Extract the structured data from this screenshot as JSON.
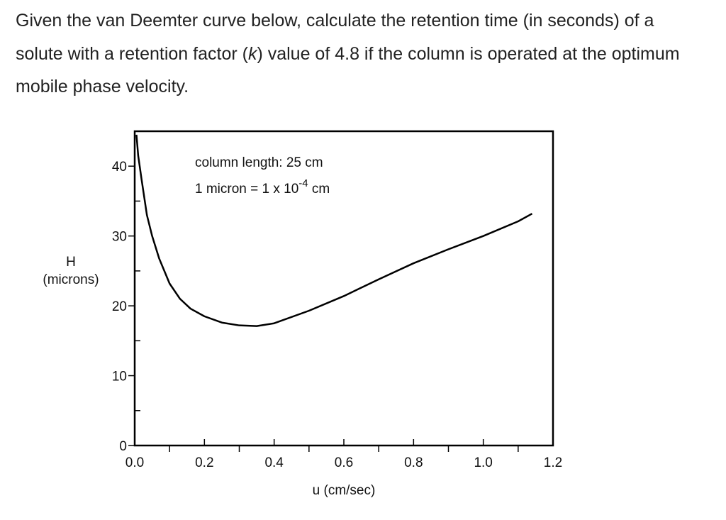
{
  "question": {
    "text_before": "Given the van Deemter curve below, calculate the retention time (in seconds) of a solute with a retention factor (",
    "italic": "k",
    "text_after": ") value of 4.8 if the column is operated at the optimum mobile phase velocity."
  },
  "chart_data": {
    "type": "line",
    "annotations": [
      "column length: 25 cm",
      "1 micron = 1 x 10",
      "-4",
      " cm"
    ],
    "ylabel": [
      "H",
      "(microns)"
    ],
    "xlabel": "u (cm/sec)",
    "x": [
      0.005,
      0.01,
      0.02,
      0.035,
      0.05,
      0.07,
      0.1,
      0.13,
      0.16,
      0.2,
      0.25,
      0.3,
      0.35,
      0.4,
      0.5,
      0.6,
      0.7,
      0.8,
      0.9,
      1.0,
      1.1,
      1.14
    ],
    "series": [
      {
        "name": "H",
        "color": "#000000",
        "values": [
          44.5,
          41.5,
          38,
          33,
          30,
          26.8,
          23.2,
          21,
          19.6,
          18.5,
          17.6,
          17.2,
          17.1,
          17.5,
          19.3,
          21.4,
          23.8,
          26.1,
          28.1,
          30,
          32.1,
          33.2
        ]
      }
    ],
    "xlim": [
      0,
      1.2
    ],
    "xticks": [
      {
        "value": 0,
        "label": "0.0"
      },
      0.2,
      0.4,
      0.6,
      0.8,
      {
        "value": 1,
        "label": "1.0"
      },
      1.2
    ],
    "xminorticks": [
      0.1,
      0.3,
      0.5,
      0.7,
      0.9,
      1.1
    ],
    "ylim": [
      0,
      45
    ],
    "yticks": [
      0,
      10,
      20,
      30,
      40
    ],
    "yminorticks": [
      5,
      15,
      25,
      35
    ],
    "grid": false
  }
}
